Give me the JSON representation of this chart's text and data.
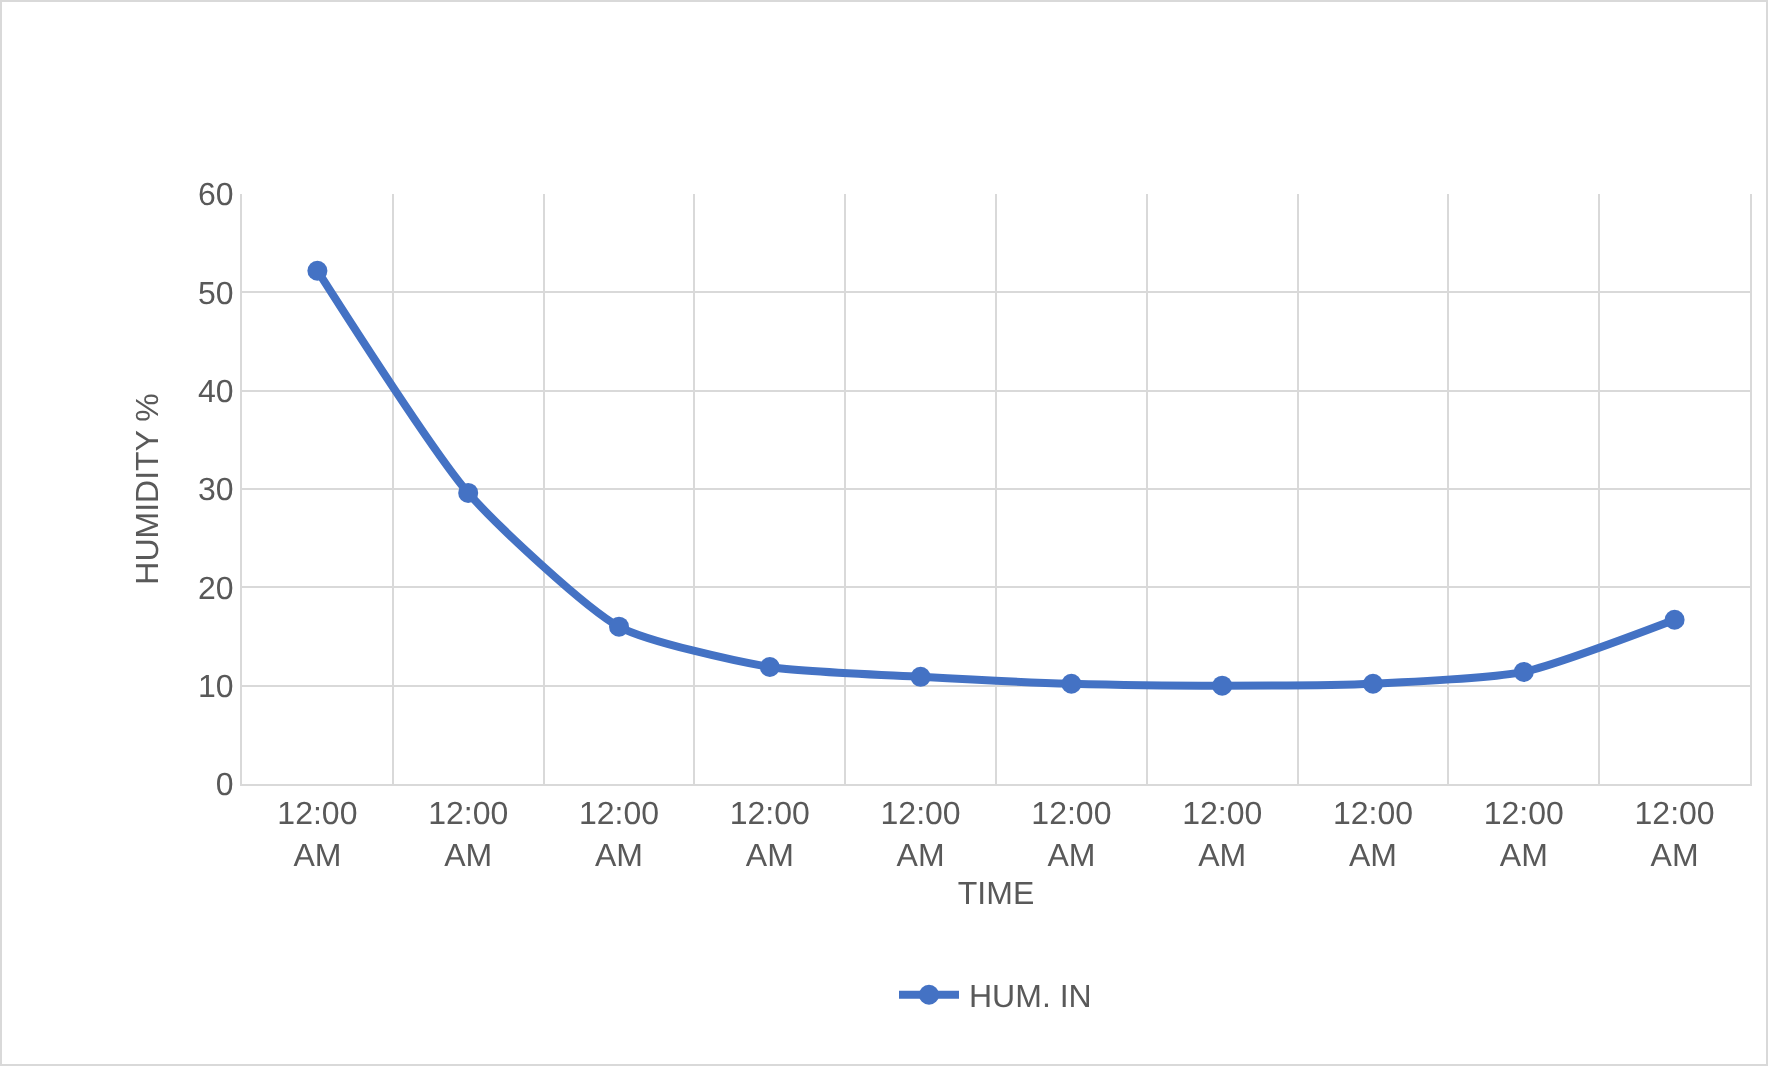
{
  "chart_data": {
    "type": "line",
    "xlabel": "TIME",
    "ylabel": "HUMIDITY %",
    "categories": [
      "12:00 AM",
      "12:00 AM",
      "12:00 AM",
      "12:00 AM",
      "12:00 AM",
      "12:00 AM",
      "12:00 AM",
      "12:00 AM",
      "12:00 AM",
      "12:00 AM"
    ],
    "series": [
      {
        "name": "HUM. IN",
        "color": "#4472c4",
        "values": [
          52.2,
          29.6,
          16,
          11.9,
          10.9,
          10.2,
          10,
          10.2,
          11.4,
          16.7
        ]
      }
    ],
    "ylim": [
      0,
      60
    ],
    "yticks": [
      0,
      10,
      20,
      30,
      40,
      50,
      60
    ],
    "grid": true,
    "legend": "bottom",
    "marker": "circle",
    "line_style": "solid"
  }
}
